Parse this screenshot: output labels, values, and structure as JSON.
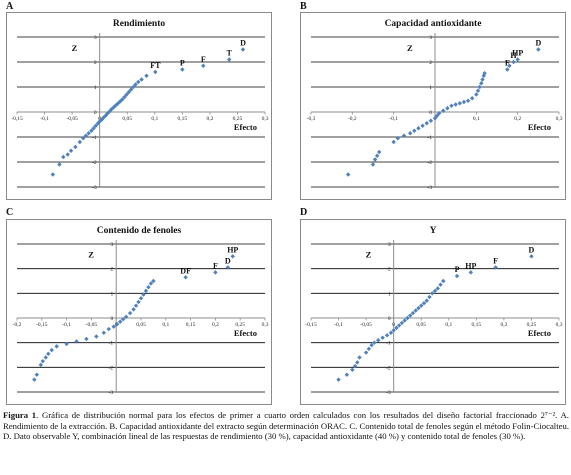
{
  "caption": {
    "label": "Figura 1",
    "text": ". Gráfica de distribución normal para los efectos de primer a cuarto orden calculados con los resultados del diseño factorial fraccionado 2⁷⁻². A. Rendimiento de la extracción. B. Capacidad antioxidante del extracto según determinación ORAC. C. Contenido total de fenoles según el método Folin-Ciocalteu. D. Dato observable Y, combinación lineal de las respuestas de rendimiento (30 %), capacidad antioxidante (40 %) y contenido total de fenoles (30 %)."
  },
  "colors": {
    "marker": "#4f81bd",
    "grid": "#000000",
    "axis": "#8c8c8c"
  },
  "chart_data": [
    {
      "panel": "A",
      "type": "scatter",
      "title": "Rendimiento",
      "xlabel": "Efecto",
      "ylabel": "Z",
      "xlim": [
        -0.15,
        0.3
      ],
      "ylim": [
        -3,
        3
      ],
      "grid": "horizontal",
      "xticks": [
        "-0,15",
        "-0,1",
        "-0,05",
        "0",
        "0,05",
        "0,1",
        "0,15",
        "0,2",
        "0,25",
        "0,3"
      ],
      "yticks": [
        "-3",
        "-2",
        "-1",
        "0",
        "1",
        "2",
        "3"
      ],
      "points": [
        [
          -0.085,
          -2.5
        ],
        [
          -0.073,
          -2.1
        ],
        [
          -0.066,
          -1.8
        ],
        [
          -0.058,
          -1.7
        ],
        [
          -0.052,
          -1.55
        ],
        [
          -0.044,
          -1.4
        ],
        [
          -0.036,
          -1.2
        ],
        [
          -0.03,
          -1.05
        ],
        [
          -0.025,
          -0.95
        ],
        [
          -0.02,
          -0.85
        ],
        [
          -0.015,
          -0.75
        ],
        [
          -0.011,
          -0.65
        ],
        [
          -0.007,
          -0.55
        ],
        [
          -0.003,
          -0.45
        ],
        [
          0.0,
          -0.38
        ],
        [
          0.004,
          -0.3
        ],
        [
          0.007,
          -0.22
        ],
        [
          0.011,
          -0.14
        ],
        [
          0.014,
          -0.06
        ],
        [
          0.018,
          0.02
        ],
        [
          0.021,
          0.1
        ],
        [
          0.025,
          0.18
        ],
        [
          0.029,
          0.26
        ],
        [
          0.033,
          0.34
        ],
        [
          0.037,
          0.42
        ],
        [
          0.041,
          0.5
        ],
        [
          0.045,
          0.6
        ],
        [
          0.049,
          0.7
        ],
        [
          0.053,
          0.8
        ],
        [
          0.057,
          0.9
        ],
        [
          0.061,
          1.0
        ],
        [
          0.065,
          1.1
        ],
        [
          0.07,
          1.2
        ],
        [
          0.076,
          1.3
        ],
        [
          0.085,
          1.45
        ],
        [
          0.101,
          1.6
        ],
        [
          0.15,
          1.7
        ],
        [
          0.188,
          1.85
        ],
        [
          0.235,
          2.1
        ],
        [
          0.26,
          2.5
        ]
      ],
      "annotations": [
        {
          "text": "FT",
          "x": 0.101,
          "y": 1.6
        },
        {
          "text": "P",
          "x": 0.15,
          "y": 1.7
        },
        {
          "text": "F",
          "x": 0.188,
          "y": 1.85
        },
        {
          "text": "T",
          "x": 0.235,
          "y": 2.1
        },
        {
          "text": "D",
          "x": 0.26,
          "y": 2.5
        }
      ]
    },
    {
      "panel": "B",
      "type": "scatter",
      "title": "Capacidad antioxidante",
      "xlabel": "Efecto",
      "ylabel": "Z",
      "xlim": [
        -0.3,
        0.3
      ],
      "ylim": [
        -3,
        3
      ],
      "grid": "horizontal",
      "xticks": [
        "-0,3",
        "-0,2",
        "-0,1",
        "0",
        "0,1",
        "0,2",
        "0,3"
      ],
      "yticks": [
        "-3",
        "-2",
        "-1",
        "0",
        "1",
        "2",
        "3"
      ],
      "points": [
        [
          -0.21,
          -2.5
        ],
        [
          -0.15,
          -2.1
        ],
        [
          -0.145,
          -1.9
        ],
        [
          -0.14,
          -1.75
        ],
        [
          -0.135,
          -1.6
        ],
        [
          -0.1,
          -1.2
        ],
        [
          -0.09,
          -1.05
        ],
        [
          -0.075,
          -0.95
        ],
        [
          -0.06,
          -0.85
        ],
        [
          -0.05,
          -0.75
        ],
        [
          -0.04,
          -0.65
        ],
        [
          -0.03,
          -0.55
        ],
        [
          -0.02,
          -0.45
        ],
        [
          -0.01,
          -0.35
        ],
        [
          0.0,
          -0.25
        ],
        [
          0.005,
          -0.15
        ],
        [
          0.01,
          -0.05
        ],
        [
          0.02,
          0.05
        ],
        [
          0.03,
          0.15
        ],
        [
          0.04,
          0.25
        ],
        [
          0.05,
          0.3
        ],
        [
          0.06,
          0.35
        ],
        [
          0.07,
          0.4
        ],
        [
          0.08,
          0.45
        ],
        [
          0.09,
          0.55
        ],
        [
          0.1,
          0.7
        ],
        [
          0.104,
          0.85
        ],
        [
          0.108,
          1.0
        ],
        [
          0.112,
          1.15
        ],
        [
          0.115,
          1.3
        ],
        [
          0.118,
          1.45
        ],
        [
          0.12,
          1.55
        ],
        [
          0.175,
          1.7
        ],
        [
          0.18,
          1.85
        ],
        [
          0.19,
          2.0
        ],
        [
          0.2,
          2.1
        ],
        [
          0.25,
          2.5
        ]
      ],
      "annotations": [
        {
          "text": "F",
          "x": 0.175,
          "y": 1.7
        },
        {
          "text": "H",
          "x": 0.19,
          "y": 2.0
        },
        {
          "text": "HP",
          "x": 0.2,
          "y": 2.1
        },
        {
          "text": "D",
          "x": 0.25,
          "y": 2.5
        }
      ]
    },
    {
      "panel": "C",
      "type": "scatter",
      "title": "Contenido de fenoles",
      "xlabel": "Efecto",
      "ylabel": "Z",
      "xlim": [
        -0.2,
        0.3
      ],
      "ylim": [
        -3,
        3
      ],
      "grid": "horizontal",
      "xticks": [
        "-0,2",
        "-0,15",
        "-0,1",
        "-0,05",
        "0",
        "0,05",
        "0,1",
        "0,15",
        "0,2",
        "0,25",
        "0,3"
      ],
      "yticks": [
        "-3",
        "-2",
        "-1",
        "0",
        "1",
        "2",
        "3"
      ],
      "points": [
        [
          -0.165,
          -2.5
        ],
        [
          -0.16,
          -2.3
        ],
        [
          -0.152,
          -1.9
        ],
        [
          -0.148,
          -1.75
        ],
        [
          -0.142,
          -1.6
        ],
        [
          -0.137,
          -1.45
        ],
        [
          -0.13,
          -1.3
        ],
        [
          -0.12,
          -1.15
        ],
        [
          -0.1,
          -1.05
        ],
        [
          -0.08,
          -0.95
        ],
        [
          -0.06,
          -0.85
        ],
        [
          -0.04,
          -0.75
        ],
        [
          -0.025,
          -0.6
        ],
        [
          -0.015,
          -0.45
        ],
        [
          -0.005,
          -0.35
        ],
        [
          0.002,
          -0.25
        ],
        [
          0.008,
          -0.15
        ],
        [
          0.014,
          -0.05
        ],
        [
          0.02,
          0.05
        ],
        [
          0.028,
          0.2
        ],
        [
          0.035,
          0.35
        ],
        [
          0.04,
          0.5
        ],
        [
          0.045,
          0.65
        ],
        [
          0.05,
          0.8
        ],
        [
          0.055,
          0.95
        ],
        [
          0.06,
          1.1
        ],
        [
          0.065,
          1.25
        ],
        [
          0.07,
          1.4
        ],
        [
          0.075,
          1.5
        ],
        [
          0.14,
          1.65
        ],
        [
          0.2,
          1.85
        ],
        [
          0.225,
          2.05
        ],
        [
          0.235,
          2.5
        ]
      ],
      "annotations": [
        {
          "text": "DF",
          "x": 0.14,
          "y": 1.65
        },
        {
          "text": "F",
          "x": 0.2,
          "y": 1.85
        },
        {
          "text": "D",
          "x": 0.225,
          "y": 2.05
        },
        {
          "text": "HP",
          "x": 0.235,
          "y": 2.5
        }
      ]
    },
    {
      "panel": "D",
      "type": "scatter",
      "title": "Y",
      "xlabel": "Efecto",
      "ylabel": "Z",
      "xlim": [
        -0.15,
        0.3
      ],
      "ylim": [
        -3,
        3
      ],
      "grid": "horizontal",
      "xticks": [
        "-0,15",
        "-0,1",
        "-0,05",
        "0",
        "0,05",
        "0,1",
        "0,15",
        "0,2",
        "0,25",
        "0,3"
      ],
      "yticks": [
        "-3",
        "-2",
        "-1",
        "0",
        "1",
        "2",
        "3"
      ],
      "points": [
        [
          -0.1,
          -2.5
        ],
        [
          -0.085,
          -2.3
        ],
        [
          -0.075,
          -2.1
        ],
        [
          -0.07,
          -1.95
        ],
        [
          -0.066,
          -1.8
        ],
        [
          -0.062,
          -1.6
        ],
        [
          -0.05,
          -1.4
        ],
        [
          -0.045,
          -1.25
        ],
        [
          -0.04,
          -1.1
        ],
        [
          -0.035,
          -1.0
        ],
        [
          -0.028,
          -0.9
        ],
        [
          -0.02,
          -0.8
        ],
        [
          -0.012,
          -0.7
        ],
        [
          -0.005,
          -0.6
        ],
        [
          0.0,
          -0.5
        ],
        [
          0.005,
          -0.4
        ],
        [
          0.01,
          -0.3
        ],
        [
          0.015,
          -0.2
        ],
        [
          0.02,
          -0.1
        ],
        [
          0.025,
          0.0
        ],
        [
          0.03,
          0.1
        ],
        [
          0.035,
          0.2
        ],
        [
          0.04,
          0.3
        ],
        [
          0.045,
          0.4
        ],
        [
          0.05,
          0.5
        ],
        [
          0.055,
          0.6
        ],
        [
          0.06,
          0.7
        ],
        [
          0.065,
          0.85
        ],
        [
          0.07,
          1.0
        ],
        [
          0.075,
          1.1
        ],
        [
          0.08,
          1.2
        ],
        [
          0.085,
          1.35
        ],
        [
          0.09,
          1.5
        ],
        [
          0.115,
          1.7
        ],
        [
          0.14,
          1.85
        ],
        [
          0.185,
          2.05
        ],
        [
          0.25,
          2.5
        ]
      ],
      "annotations": [
        {
          "text": "P",
          "x": 0.115,
          "y": 1.7
        },
        {
          "text": "HP",
          "x": 0.14,
          "y": 1.85
        },
        {
          "text": "F",
          "x": 0.185,
          "y": 2.05
        },
        {
          "text": "D",
          "x": 0.25,
          "y": 2.5
        }
      ]
    }
  ]
}
